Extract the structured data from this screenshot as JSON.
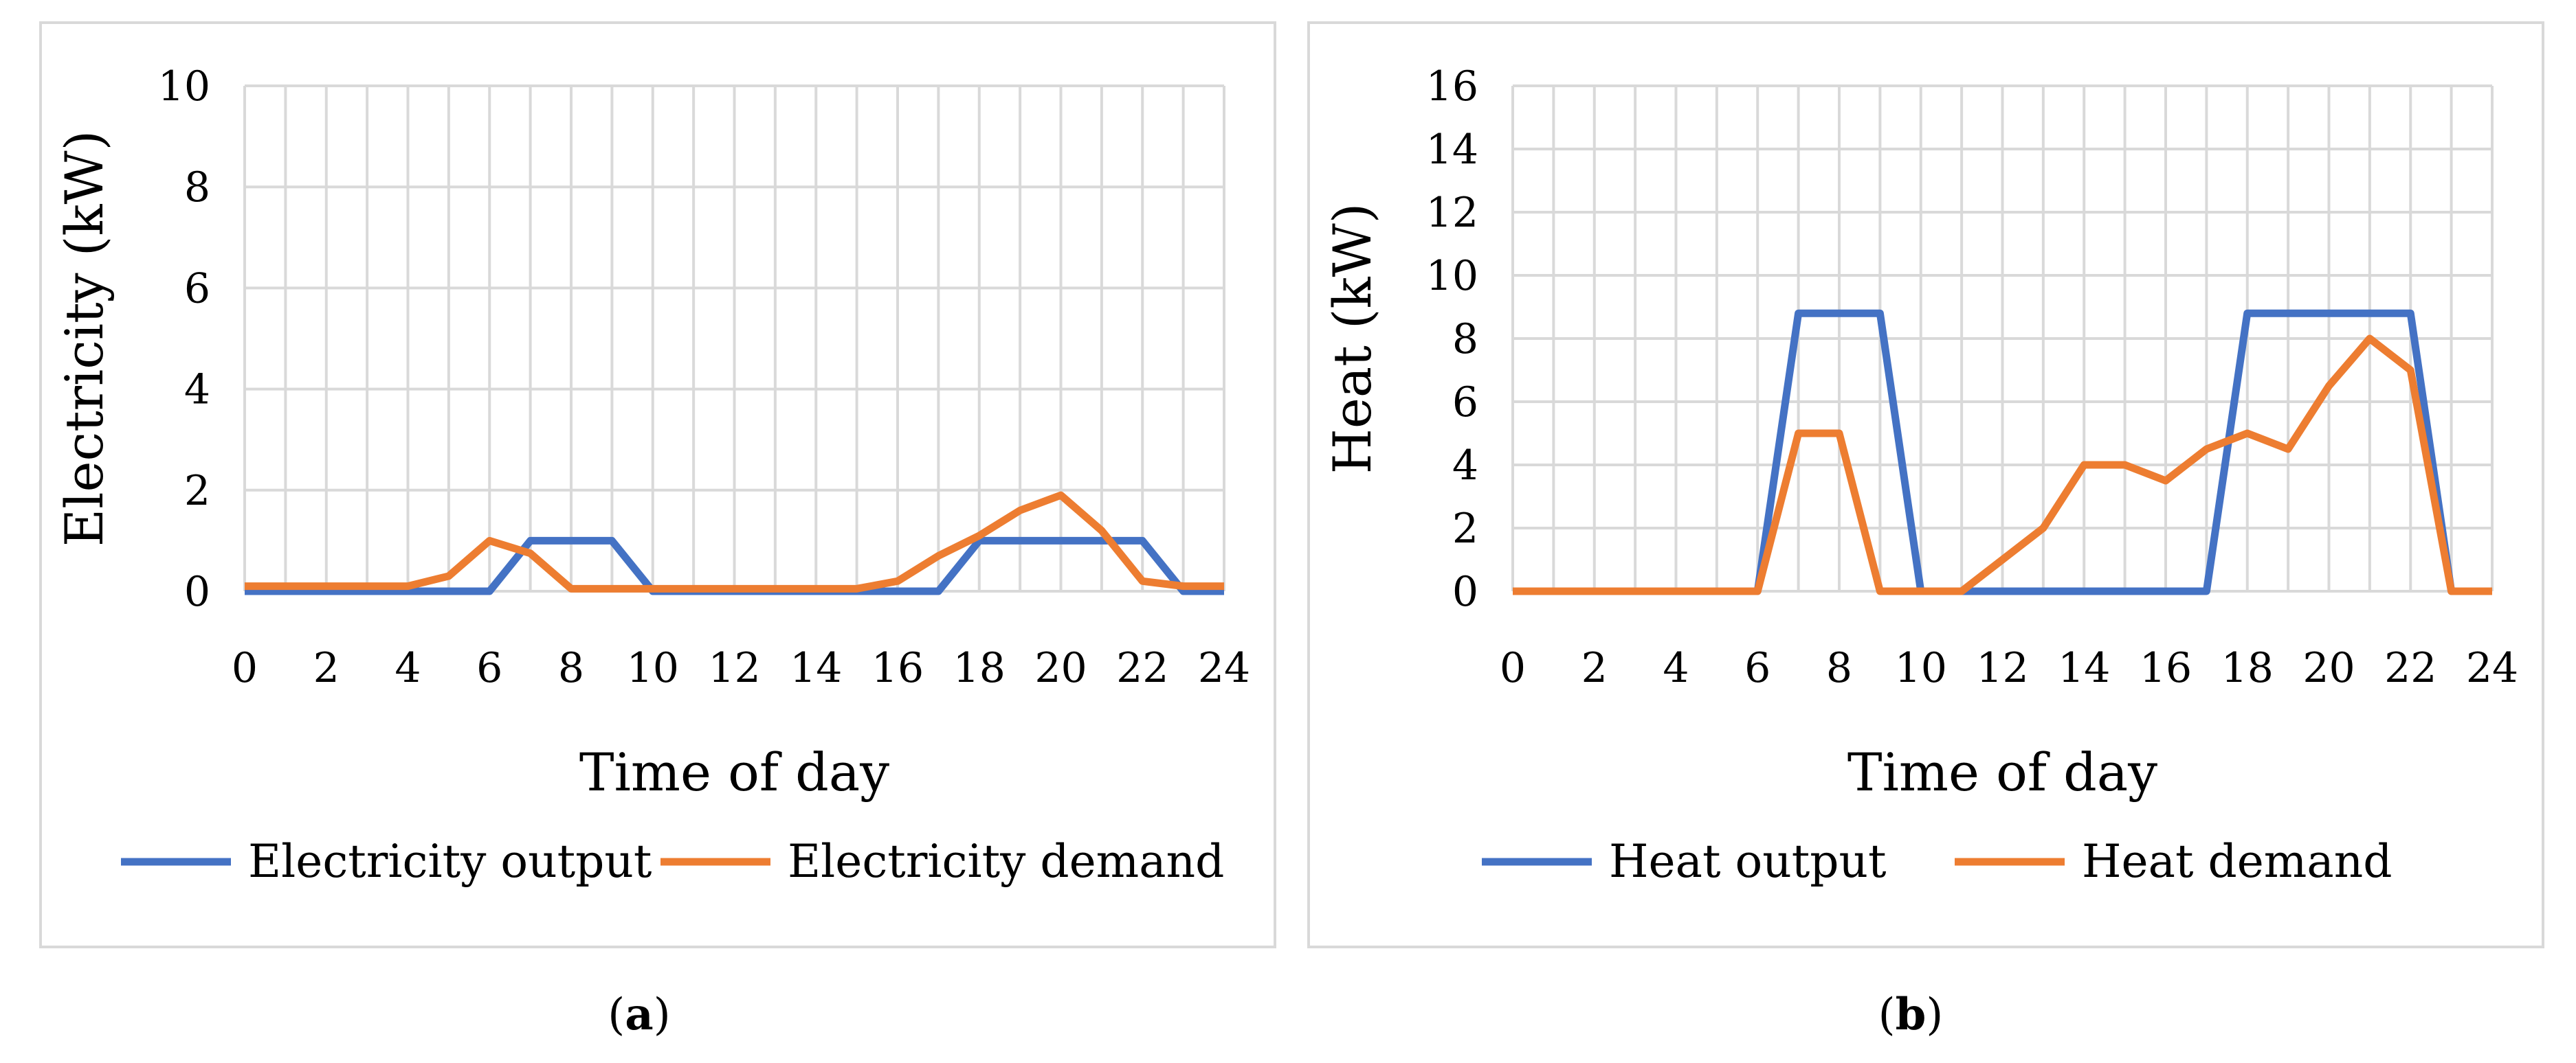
{
  "colors": {
    "output": "#4472c4",
    "demand": "#ed7d31",
    "grid": "#d9d9d9"
  },
  "chart_data": [
    {
      "type": "line",
      "caption_letter": "a",
      "xlabel": "Time of day",
      "ylabel": "Electricity (kW)",
      "xlim": [
        0,
        24
      ],
      "ylim": [
        0,
        10
      ],
      "xticks": [
        0,
        2,
        4,
        6,
        8,
        10,
        12,
        14,
        16,
        18,
        20,
        22,
        24
      ],
      "yticks": [
        0,
        2,
        4,
        6,
        8,
        10
      ],
      "grid": true,
      "legend_position": "bottom",
      "x": [
        0,
        1,
        2,
        3,
        4,
        5,
        6,
        7,
        8,
        9,
        10,
        11,
        12,
        13,
        14,
        15,
        16,
        17,
        18,
        19,
        20,
        21,
        22,
        23,
        24
      ],
      "series": [
        {
          "name": "Electricity output",
          "color_key": "output",
          "values": [
            0,
            0,
            0,
            0,
            0,
            0,
            0,
            1,
            1,
            1,
            0,
            0,
            0,
            0,
            0,
            0,
            0,
            0,
            1,
            1,
            1,
            1,
            1,
            0,
            0
          ]
        },
        {
          "name": "Electricity demand",
          "color_key": "demand",
          "values": [
            0.1,
            0.1,
            0.1,
            0.1,
            0.1,
            0.3,
            1.0,
            0.75,
            0.05,
            0.05,
            0.05,
            0.05,
            0.05,
            0.05,
            0.05,
            0.05,
            0.2,
            0.7,
            1.1,
            1.6,
            1.9,
            1.2,
            0.2,
            0.1,
            0.1
          ]
        }
      ]
    },
    {
      "type": "line",
      "caption_letter": "b",
      "xlabel": "Time of day",
      "ylabel": "Heat (kW)",
      "xlim": [
        0,
        24
      ],
      "ylim": [
        0,
        16
      ],
      "xticks": [
        0,
        2,
        4,
        6,
        8,
        10,
        12,
        14,
        16,
        18,
        20,
        22,
        24
      ],
      "yticks": [
        0,
        2,
        4,
        6,
        8,
        10,
        12,
        14,
        16
      ],
      "grid": true,
      "legend_position": "bottom",
      "x": [
        0,
        1,
        2,
        3,
        4,
        5,
        6,
        7,
        8,
        9,
        10,
        11,
        12,
        13,
        14,
        15,
        16,
        17,
        18,
        19,
        20,
        21,
        22,
        23,
        24
      ],
      "series": [
        {
          "name": "Heat output",
          "color_key": "output",
          "values": [
            0,
            0,
            0,
            0,
            0,
            0,
            0,
            8.8,
            8.8,
            8.8,
            0,
            0,
            0,
            0,
            0,
            0,
            0,
            0,
            8.8,
            8.8,
            8.8,
            8.8,
            8.8,
            0,
            0
          ]
        },
        {
          "name": "Heat demand",
          "color_key": "demand",
          "values": [
            0,
            0,
            0,
            0,
            0,
            0,
            0,
            5,
            5,
            0,
            0,
            0,
            1,
            2,
            4,
            4,
            3.5,
            4.5,
            5,
            4.5,
            6.5,
            8,
            7,
            0,
            0
          ]
        }
      ]
    }
  ]
}
